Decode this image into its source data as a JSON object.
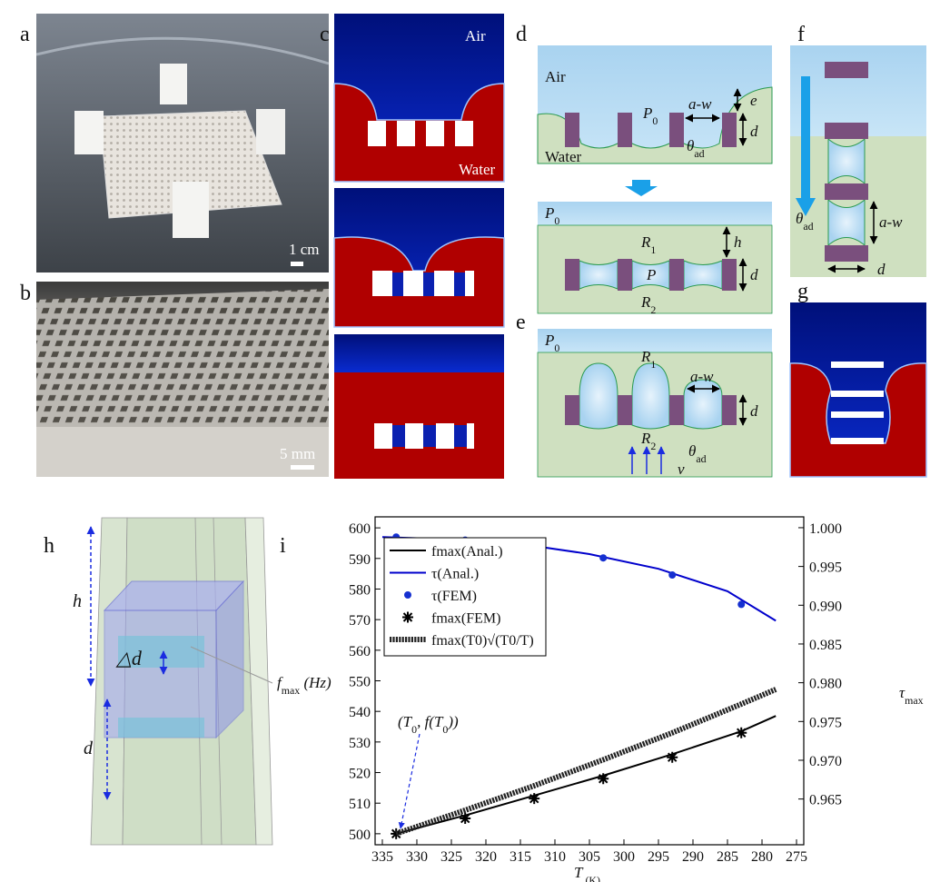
{
  "panels": {
    "a": {
      "label": "a",
      "scale": "1 cm"
    },
    "b": {
      "label": "b",
      "scale": "5 mm"
    },
    "c": {
      "label": "c",
      "air": "Air",
      "water": "Water"
    },
    "d": {
      "label": "d",
      "air": "Air",
      "water": "Water",
      "p0_top": [
        "P",
        "0"
      ],
      "aw": "a-w",
      "e": "e",
      "d_top": "d",
      "theta": [
        "θ",
        "ad"
      ],
      "p0_bottom": [
        "P",
        "0"
      ],
      "r1": [
        "R",
        "1"
      ],
      "p": "P",
      "r2": [
        "R",
        "2"
      ],
      "h": "h",
      "d_bottom": "d"
    },
    "e": {
      "label": "e",
      "p0": [
        "P",
        "0"
      ],
      "r1": [
        "R",
        "1"
      ],
      "aw": "a-w",
      "r2": [
        "R",
        "2"
      ],
      "d": "d",
      "theta": [
        "θ",
        "ad"
      ],
      "v": "v"
    },
    "f": {
      "label": "f",
      "theta": [
        "θ",
        "ad"
      ],
      "aw": "a-w",
      "d": "d"
    },
    "g": {
      "label": "g"
    },
    "h": {
      "label": "h",
      "h": "h",
      "d": "d",
      "delta_d": "△d"
    },
    "i": {
      "label": "i"
    }
  },
  "chart_data": {
    "type": "line",
    "x_label": [
      "T",
      " (K)"
    ],
    "y_label": [
      "f",
      "max",
      " (Hz)"
    ],
    "y2_label": [
      "τ",
      "max"
    ],
    "annotation": [
      "(T",
      "0",
      ", f(T",
      "0",
      "))"
    ],
    "xlim": [
      336.05,
      273.95
    ],
    "xticks": [
      335,
      330,
      325,
      320,
      315,
      310,
      305,
      300,
      295,
      290,
      285,
      280,
      275
    ],
    "ylim": [
      496.4,
      603.6
    ],
    "yticks": [
      500,
      510,
      520,
      530,
      540,
      550,
      560,
      570,
      580,
      590,
      600
    ],
    "y2lim": [
      0.9591,
      1.0014
    ],
    "y2ticks": [
      0.965,
      {
        "value": 0.97,
        "label": "0.970"
      },
      0.975,
      {
        "value": 0.98,
        "label": "0.980"
      },
      0.985,
      {
        "value": 0.99,
        "label": "0.990"
      },
      0.995,
      {
        "value": 1,
        "label": "1.000"
      }
    ],
    "legend": "upper left",
    "series": [
      {
        "name": "fmax(Anal.)",
        "color": "#000000",
        "mark": "line",
        "x": [
          333,
          323,
          313,
          303,
          293,
          283,
          278
        ],
        "values": [
          500,
          506,
          512.5,
          519,
          526,
          533.5,
          538.5
        ]
      },
      {
        "name": "τ(Anal.)",
        "color": "#0000cc",
        "mark": "line",
        "axis": "y2",
        "x": [
          335,
          325,
          315,
          305,
          295,
          285,
          278
        ],
        "values": [
          0.9988,
          0.9985,
          0.9979,
          0.9966,
          0.9947,
          0.9918,
          0.988
        ]
      },
      {
        "name": "τ(FEM)",
        "color": "#1530d0",
        "mark": "circle",
        "axis": "y2",
        "x": [
          333,
          323,
          313,
          303,
          293,
          283
        ],
        "values": [
          0.9988,
          0.9984,
          0.9976,
          0.9961,
          0.9939,
          0.9901
        ]
      },
      {
        "name": "fmax(FEM)",
        "color": "#000000",
        "mark": "asterisk",
        "x": [
          333,
          323,
          313,
          303,
          293,
          283
        ],
        "values": [
          500,
          505,
          511.5,
          518,
          525,
          533
        ]
      },
      {
        "name": "fmax(T0)√(T0/T)",
        "color": "#222222",
        "mark": "beaded",
        "x": [
          333,
          323,
          313,
          303,
          293,
          283,
          278
        ],
        "values": [
          500,
          507.7,
          515.7,
          524.2,
          533,
          542.4,
          547.2
        ]
      }
    ]
  }
}
